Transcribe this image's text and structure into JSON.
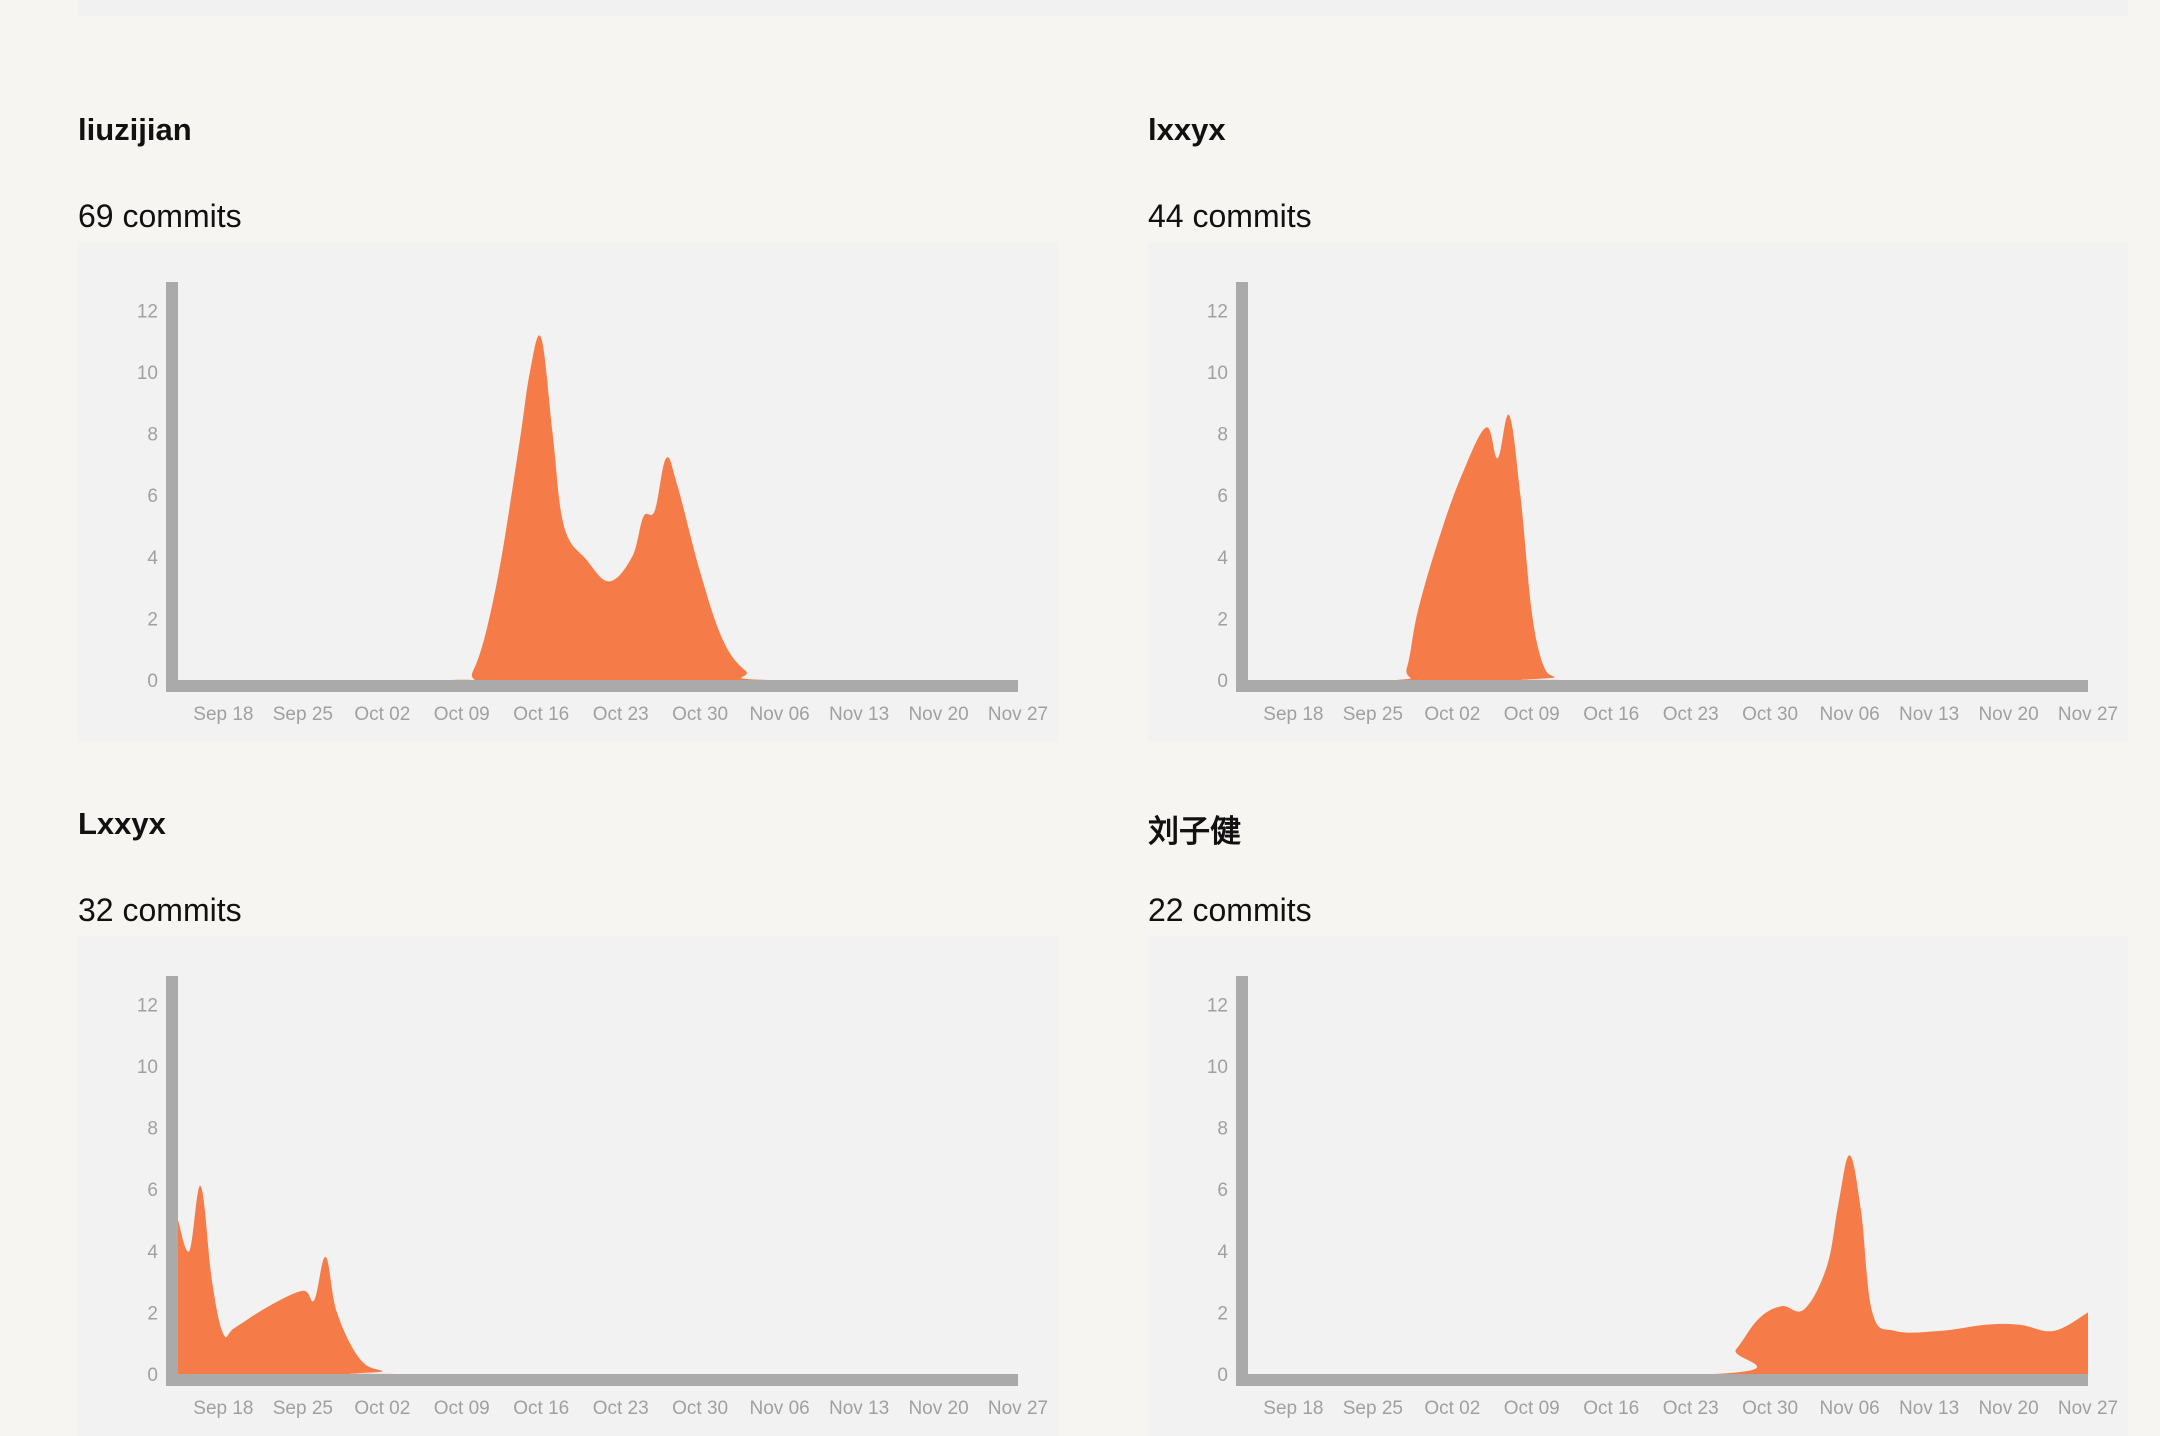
{
  "colors": {
    "area": "#f57c49",
    "axis": "#aaaaaa",
    "tick_text": "#a0a0a0",
    "panel": "#f2f2f2",
    "page": "#f6f5f2"
  },
  "contributors": [
    {
      "name": "liuzijian",
      "commits_label": "69 commits"
    },
    {
      "name": "lxxyx",
      "commits_label": "44 commits"
    },
    {
      "name": "Lxxyx",
      "commits_label": "32 commits"
    },
    {
      "name": "刘子健",
      "commits_label": "22 commits"
    }
  ],
  "chart_data": [
    {
      "type": "area",
      "title": "liuzijian",
      "xlabel": "",
      "ylabel": "",
      "x_tick_labels": [
        "Sep 18",
        "Sep 25",
        "Oct 02",
        "Oct 09",
        "Oct 16",
        "Oct 23",
        "Oct 30",
        "Nov 06",
        "Nov 13",
        "Nov 20",
        "Nov 27"
      ],
      "y_ticks": [
        0,
        2,
        4,
        6,
        8,
        10,
        12
      ],
      "xlim": [
        "2017-09-14",
        "2017-11-27"
      ],
      "ylim": [
        0,
        13
      ],
      "grid": false,
      "x": [
        "2017-09-14",
        "2017-10-08",
        "2017-10-10",
        "2017-10-12",
        "2017-10-14",
        "2017-10-15",
        "2017-10-16",
        "2017-10-17",
        "2017-10-18",
        "2017-10-20",
        "2017-10-22",
        "2017-10-24",
        "2017-10-25",
        "2017-10-26",
        "2017-10-27",
        "2017-10-28",
        "2017-10-30",
        "2017-11-01",
        "2017-11-03",
        "2017-11-05",
        "2017-11-27"
      ],
      "y": [
        0,
        0,
        0.3,
        3,
        7.5,
        10,
        11.1,
        8,
        5,
        3.9,
        3.2,
        4,
        5.3,
        5.5,
        7.2,
        6.3,
        3.5,
        1.3,
        0.3,
        0,
        0
      ]
    },
    {
      "type": "area",
      "title": "lxxyx",
      "xlabel": "",
      "ylabel": "",
      "x_tick_labels": [
        "Sep 18",
        "Sep 25",
        "Oct 02",
        "Oct 09",
        "Oct 16",
        "Oct 23",
        "Oct 30",
        "Nov 06",
        "Nov 13",
        "Nov 20",
        "Nov 27"
      ],
      "y_ticks": [
        0,
        2,
        4,
        6,
        8,
        10,
        12
      ],
      "xlim": [
        "2017-09-14",
        "2017-11-27"
      ],
      "ylim": [
        0,
        13
      ],
      "grid": false,
      "x": [
        "2017-09-14",
        "2017-09-27",
        "2017-09-28",
        "2017-09-29",
        "2017-10-01",
        "2017-10-03",
        "2017-10-05",
        "2017-10-06",
        "2017-10-07",
        "2017-10-08",
        "2017-10-09",
        "2017-10-10",
        "2017-10-11",
        "2017-10-12",
        "2017-11-27"
      ],
      "y": [
        0,
        0,
        0.4,
        2.3,
        4.8,
        6.8,
        8.2,
        7.2,
        8.6,
        6,
        2.2,
        0.5,
        0.1,
        0,
        0
      ]
    },
    {
      "type": "area",
      "title": "Lxxyx",
      "xlabel": "",
      "ylabel": "",
      "x_tick_labels": [
        "Sep 18",
        "Sep 25",
        "Oct 02",
        "Oct 09",
        "Oct 16",
        "Oct 23",
        "Oct 30",
        "Nov 06",
        "Nov 13",
        "Nov 20",
        "Nov 27"
      ],
      "y_ticks": [
        0,
        2,
        4,
        6,
        8,
        10,
        12
      ],
      "xlim": [
        "2017-09-14",
        "2017-11-27"
      ],
      "ylim": [
        0,
        13
      ],
      "grid": false,
      "x": [
        "2017-09-14",
        "2017-09-15",
        "2017-09-16",
        "2017-09-17",
        "2017-09-18",
        "2017-09-19",
        "2017-09-22",
        "2017-09-25",
        "2017-09-26",
        "2017-09-27",
        "2017-09-28",
        "2017-09-30",
        "2017-10-02",
        "2017-10-04",
        "2017-11-27"
      ],
      "y": [
        5,
        4,
        6.1,
        3,
        1.3,
        1.5,
        2.2,
        2.7,
        2.4,
        3.8,
        2,
        0.5,
        0.1,
        0,
        0
      ]
    },
    {
      "type": "area",
      "title": "刘子健",
      "xlabel": "",
      "ylabel": "",
      "x_tick_labels": [
        "Sep 18",
        "Sep 25",
        "Oct 02",
        "Oct 09",
        "Oct 16",
        "Oct 23",
        "Oct 30",
        "Nov 06",
        "Nov 13",
        "Nov 20",
        "Nov 27"
      ],
      "y_ticks": [
        0,
        2,
        4,
        6,
        8,
        10,
        12
      ],
      "xlim": [
        "2017-09-14",
        "2017-11-27"
      ],
      "ylim": [
        0,
        13
      ],
      "grid": false,
      "x": [
        "2017-09-14",
        "2017-10-25",
        "2017-10-27",
        "2017-10-29",
        "2017-10-31",
        "2017-11-02",
        "2017-11-04",
        "2017-11-05",
        "2017-11-06",
        "2017-11-07",
        "2017-11-08",
        "2017-11-10",
        "2017-11-14",
        "2017-11-18",
        "2017-11-21",
        "2017-11-24",
        "2017-11-27"
      ],
      "y": [
        0,
        0,
        0.8,
        1.8,
        2.2,
        2.1,
        3.5,
        5.5,
        7.1,
        5.3,
        2,
        1.4,
        1.4,
        1.6,
        1.6,
        1.4,
        2
      ]
    }
  ]
}
